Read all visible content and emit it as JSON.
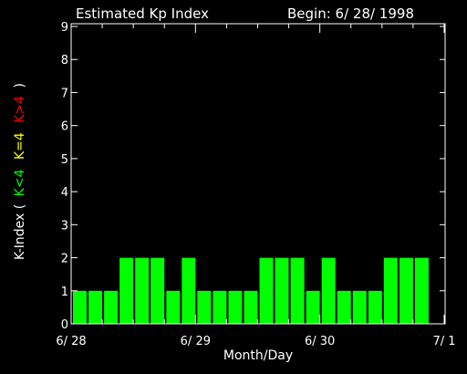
{
  "chart_data": {
    "type": "bar",
    "title": "Estimated Kp Index",
    "begin_label": "Begin: 6/ 28/ 1998",
    "xlabel": "Month/Day",
    "ylabel": {
      "prefix": "K-Index (",
      "green": "K<4",
      "yellow": "K=4",
      "red": "K>4",
      "suffix": ")"
    },
    "ylim": [
      0,
      9
    ],
    "yticks": [
      "0",
      "1",
      "2",
      "3",
      "4",
      "5",
      "6",
      "7",
      "8",
      "9"
    ],
    "xticks": [
      {
        "label": "6/ 28",
        "day": 0
      },
      {
        "label": "6/ 29",
        "day": 1
      },
      {
        "label": "6/ 30",
        "day": 2
      },
      {
        "label": "7/ 1",
        "day": 3
      }
    ],
    "bin_hours": 3,
    "values": [
      1,
      1,
      1,
      2,
      2,
      2,
      1,
      2,
      1,
      1,
      1,
      1,
      2,
      2,
      2,
      1,
      2,
      1,
      1,
      1,
      2,
      2,
      2
    ],
    "colors": {
      "low": "#00ff00",
      "equal": "#ffff00",
      "high": "#ff0000",
      "axis": "#ffffff",
      "background": "#000000"
    }
  }
}
